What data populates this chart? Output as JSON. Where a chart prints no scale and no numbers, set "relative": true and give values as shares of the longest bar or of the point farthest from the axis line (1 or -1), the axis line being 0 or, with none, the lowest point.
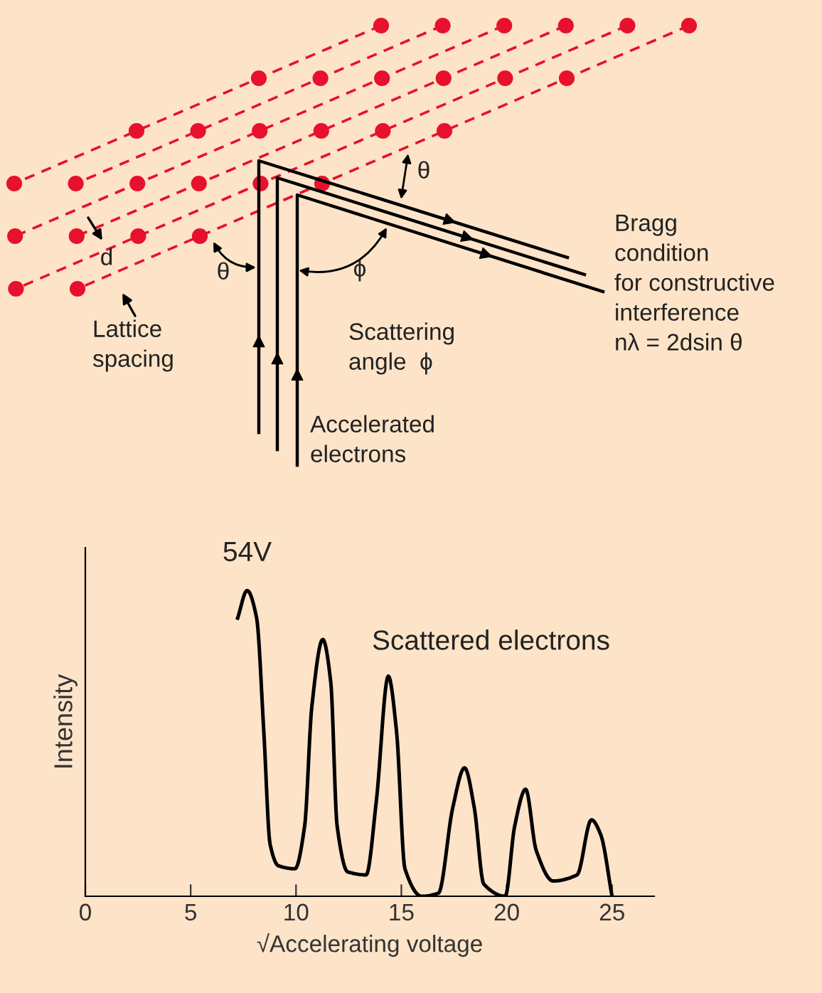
{
  "chart_data": {
    "type": "line",
    "xlabel": "√Accelerating voltage",
    "ylabel": "Intensity",
    "relative": true,
    "xlim": [
      0,
      27
    ],
    "xticks": [
      0,
      5,
      10,
      15,
      20,
      25
    ],
    "grid": false,
    "legend": false,
    "marker": "none",
    "line_style": "solid",
    "series": [
      {
        "name": "Scattered electrons",
        "color": "#000000",
        "x": [
          7.23,
          7.68,
          8.13,
          8.47,
          8.77,
          9.16,
          9.95,
          10.41,
          10.75,
          11.27,
          11.65,
          11.95,
          12.45,
          13.33,
          13.81,
          14.38,
          14.77,
          15.17,
          15.96,
          16.76,
          17.44,
          18.0,
          18.46,
          18.91,
          19.93,
          20.38,
          20.9,
          21.4,
          22.2,
          23.34,
          24.02,
          24.47,
          25.0
        ],
        "values": [
          0.91,
          1.0,
          0.91,
          0.54,
          0.17,
          0.1,
          0.09,
          0.23,
          0.62,
          0.84,
          0.7,
          0.23,
          0.08,
          0.07,
          0.31,
          0.72,
          0.54,
          0.09,
          0.0,
          0.01,
          0.29,
          0.42,
          0.29,
          0.04,
          0.0,
          0.23,
          0.35,
          0.15,
          0.05,
          0.07,
          0.25,
          0.2,
          0.0
        ]
      }
    ],
    "annotations": [
      {
        "text": "54V",
        "x": 7.68,
        "y": 1.0
      },
      "θ",
      "d",
      "θ",
      "ϕ",
      "Lattice\nspacing",
      "Scattering\nangle  ϕ",
      "Accelerated\nelectrons",
      "Bragg\ncondition\nfor constructive\ninterference\nnλ = 2dsin θ"
    ]
  }
}
